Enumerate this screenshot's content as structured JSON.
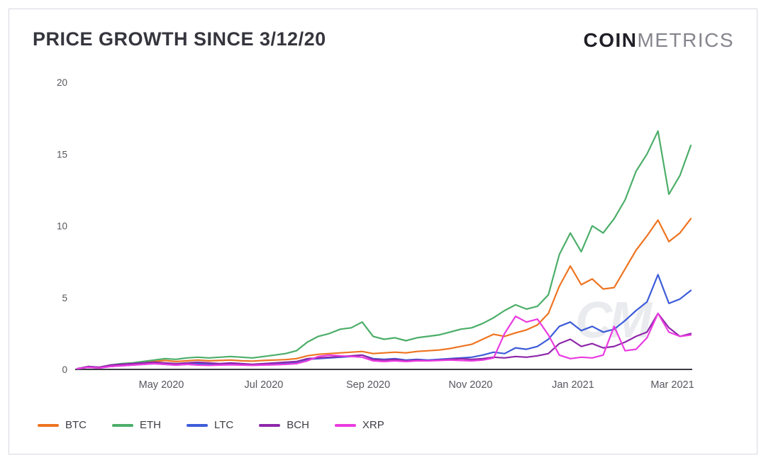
{
  "header": {
    "title": "PRICE GROWTH SINCE 3/12/20",
    "logo_coin": "COIN",
    "logo_metrics": "METRICS"
  },
  "watermark": "CM",
  "chart_data": {
    "type": "line",
    "title": "PRICE GROWTH SINCE 3/12/20",
    "x_start": "2020-03-12",
    "x_end": "2021-03-12",
    "x_note": "57 points evenly spaced (~weekly) across the date range",
    "ylim": [
      0,
      20
    ],
    "y_ticks": [
      0,
      5,
      10,
      15,
      20
    ],
    "x_ticks": [
      {
        "label": "May 2020",
        "pos": 0.137
      },
      {
        "label": "Jul 2020",
        "pos": 0.304
      },
      {
        "label": "Sep 2020",
        "pos": 0.474
      },
      {
        "label": "Nov 2020",
        "pos": 0.641
      },
      {
        "label": "Jan 2021",
        "pos": 0.808
      },
      {
        "label": "Mar 2021",
        "pos": 0.97
      }
    ],
    "grid": false,
    "legend_position": "bottom-left",
    "axis_color": "#3b3b43",
    "tick_label_color": "#56565e",
    "series": [
      {
        "name": "BTC",
        "color": "#ee7420",
        "values": [
          0.05,
          0.18,
          0.12,
          0.3,
          0.35,
          0.4,
          0.48,
          0.55,
          0.62,
          0.55,
          0.6,
          0.65,
          0.6,
          0.62,
          0.65,
          0.6,
          0.58,
          0.62,
          0.65,
          0.68,
          0.75,
          0.95,
          1.05,
          1.1,
          1.15,
          1.2,
          1.25,
          1.1,
          1.15,
          1.2,
          1.15,
          1.25,
          1.3,
          1.35,
          1.45,
          1.6,
          1.75,
          2.1,
          2.45,
          2.3,
          2.55,
          2.75,
          3.1,
          3.9,
          5.8,
          7.2,
          5.9,
          6.3,
          5.6,
          5.7,
          7.0,
          8.3,
          9.3,
          10.4,
          8.9,
          9.5,
          10.5
        ]
      },
      {
        "name": "ETH",
        "color": "#4cae69",
        "values": [
          0.05,
          0.2,
          0.15,
          0.3,
          0.4,
          0.45,
          0.55,
          0.65,
          0.75,
          0.7,
          0.8,
          0.85,
          0.8,
          0.85,
          0.9,
          0.85,
          0.8,
          0.9,
          1.0,
          1.1,
          1.3,
          1.9,
          2.3,
          2.5,
          2.8,
          2.9,
          3.3,
          2.3,
          2.1,
          2.2,
          2.0,
          2.2,
          2.3,
          2.4,
          2.6,
          2.8,
          2.9,
          3.2,
          3.6,
          4.1,
          4.5,
          4.2,
          4.4,
          5.2,
          8.0,
          9.5,
          8.2,
          10.0,
          9.5,
          10.5,
          11.8,
          13.8,
          15.0,
          16.6,
          12.2,
          13.5,
          15.6
        ]
      },
      {
        "name": "LTC",
        "color": "#3d5cd8",
        "values": [
          0.05,
          0.15,
          0.1,
          0.2,
          0.25,
          0.3,
          0.35,
          0.4,
          0.35,
          0.3,
          0.35,
          0.4,
          0.35,
          0.35,
          0.4,
          0.35,
          0.3,
          0.35,
          0.4,
          0.45,
          0.5,
          0.7,
          0.75,
          0.8,
          0.85,
          0.9,
          1.0,
          0.75,
          0.7,
          0.75,
          0.65,
          0.7,
          0.65,
          0.7,
          0.75,
          0.8,
          0.85,
          1.0,
          1.2,
          1.1,
          1.5,
          1.4,
          1.6,
          2.1,
          3.0,
          3.3,
          2.7,
          3.0,
          2.6,
          2.8,
          3.4,
          4.1,
          4.7,
          6.6,
          4.6,
          4.9,
          5.5
        ]
      },
      {
        "name": "BCH",
        "color": "#8e27aa",
        "values": [
          0.05,
          0.2,
          0.15,
          0.3,
          0.35,
          0.4,
          0.45,
          0.5,
          0.45,
          0.4,
          0.45,
          0.5,
          0.45,
          0.4,
          0.45,
          0.4,
          0.35,
          0.4,
          0.45,
          0.5,
          0.55,
          0.75,
          0.8,
          0.85,
          0.9,
          0.95,
          1.0,
          0.7,
          0.65,
          0.7,
          0.6,
          0.65,
          0.6,
          0.65,
          0.7,
          0.75,
          0.7,
          0.75,
          0.85,
          0.8,
          0.9,
          0.85,
          0.95,
          1.1,
          1.8,
          2.1,
          1.6,
          1.8,
          1.5,
          1.6,
          1.9,
          2.3,
          2.6,
          3.9,
          2.9,
          2.3,
          2.5
        ]
      },
      {
        "name": "XRP",
        "color": "#ea3be0",
        "values": [
          0.05,
          0.15,
          0.1,
          0.2,
          0.25,
          0.3,
          0.35,
          0.4,
          0.35,
          0.3,
          0.35,
          0.3,
          0.28,
          0.3,
          0.32,
          0.3,
          0.28,
          0.3,
          0.32,
          0.35,
          0.4,
          0.6,
          0.9,
          1.0,
          0.95,
          0.9,
          0.85,
          0.6,
          0.55,
          0.6,
          0.55,
          0.6,
          0.6,
          0.62,
          0.65,
          0.62,
          0.6,
          0.65,
          0.8,
          2.5,
          3.7,
          3.3,
          3.5,
          2.4,
          1.0,
          0.75,
          0.85,
          0.8,
          1.0,
          3.0,
          1.3,
          1.4,
          2.2,
          3.9,
          2.6,
          2.3,
          2.4
        ]
      }
    ]
  }
}
